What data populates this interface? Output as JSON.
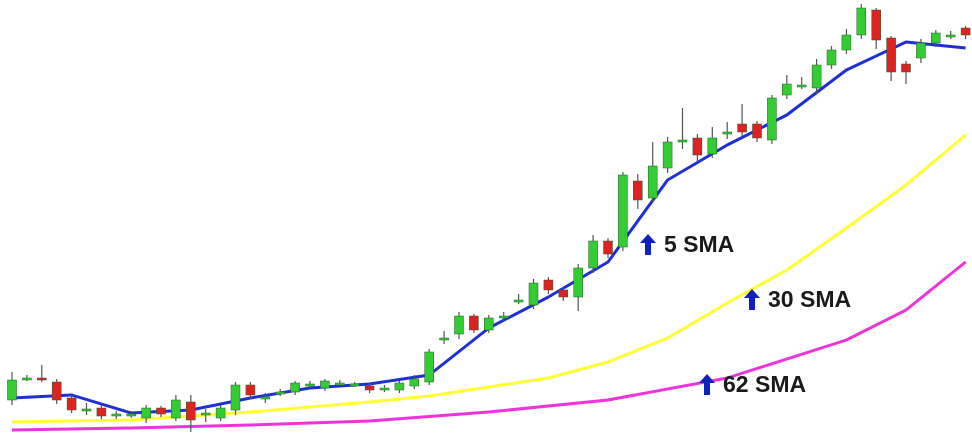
{
  "chart_data": {
    "type": "candlestick",
    "ylim": [
      0,
      439
    ],
    "up_color": "#33cc33",
    "down_color": "#dd2222",
    "wick_color": "#555555",
    "candles": {
      "open": [
        39,
        60,
        61,
        57,
        41,
        29,
        31,
        25,
        24,
        21,
        31,
        21,
        37,
        26,
        21,
        29,
        54,
        42,
        46,
        47,
        55,
        51,
        56,
        55,
        53,
        51,
        49,
        53,
        57,
        101,
        105,
        123,
        109,
        123,
        139,
        134,
        159,
        149,
        142,
        171,
        198,
        192,
        258,
        241,
        271,
        299,
        301,
        285,
        307,
        315,
        315,
        299,
        344,
        354,
        351,
        374,
        389,
        404,
        429,
        401,
        375,
        381,
        396,
        404,
        411
      ],
      "high": [
        67,
        64,
        74,
        60,
        44,
        36,
        34,
        28,
        28,
        34,
        33,
        44,
        44,
        30,
        34,
        57,
        57,
        46,
        50,
        58,
        58,
        60,
        59,
        57,
        55,
        54,
        58,
        64,
        90,
        108,
        127,
        125,
        124,
        127,
        145,
        160,
        162,
        152,
        175,
        204,
        201,
        267,
        265,
        297,
        302,
        331,
        305,
        312,
        317,
        335,
        318,
        344,
        364,
        362,
        380,
        393,
        410,
        435,
        431,
        403,
        378,
        400,
        409,
        408,
        413
      ],
      "low": [
        34,
        58,
        57,
        35,
        26,
        24,
        20,
        20,
        21,
        16,
        22,
        18,
        7,
        17,
        18,
        24,
        40,
        36,
        43,
        44,
        51,
        48,
        53,
        52,
        46,
        47,
        46,
        50,
        54,
        95,
        100,
        106,
        106,
        118,
        135,
        130,
        145,
        138,
        128,
        166,
        181,
        188,
        230,
        236,
        266,
        290,
        278,
        281,
        300,
        303,
        297,
        295,
        340,
        350,
        346,
        370,
        385,
        400,
        390,
        358,
        355,
        376,
        392,
        400,
        400
      ],
      "close": [
        59,
        61,
        60,
        39,
        29,
        30,
        23,
        25,
        25,
        31,
        25,
        39,
        19,
        26,
        31,
        54,
        44,
        42,
        47,
        56,
        55,
        58,
        56,
        55,
        49,
        51,
        56,
        60,
        87,
        101,
        123,
        109,
        121,
        123,
        139,
        156,
        149,
        142,
        171,
        198,
        185,
        264,
        239,
        273,
        297,
        299,
        284,
        301,
        307,
        307,
        301,
        341,
        355,
        354,
        374,
        389,
        404,
        431,
        399,
        367,
        367,
        396,
        406,
        404,
        404
      ]
    },
    "lines": [
      {
        "name": "5 SMA",
        "color": "#1f2fd6",
        "x": [
          0,
          4,
          8,
          12,
          16,
          20,
          24,
          28,
          32,
          36,
          40,
          44,
          48,
          52,
          56,
          60,
          64
        ],
        "values": [
          41,
          44,
          26,
          29,
          41,
          51,
          55,
          64,
          111,
          142,
          177,
          259,
          294,
          324,
          369,
          397,
          391
        ]
      },
      {
        "name": "30 SMA",
        "color": "#ffff33",
        "x": [
          0,
          8,
          16,
          24,
          28,
          32,
          36,
          40,
          44,
          48,
          52,
          56,
          60,
          64
        ],
        "values": [
          17,
          19,
          27,
          37,
          43,
          52,
          61,
          77,
          101,
          136,
          169,
          211,
          254,
          304
        ]
      },
      {
        "name": "62 SMA",
        "color": "#ee33dd",
        "x": [
          0,
          8,
          16,
          24,
          32,
          40,
          48,
          56,
          60,
          64
        ],
        "values": [
          9,
          11,
          14,
          18,
          27,
          39,
          61,
          99,
          129,
          177
        ]
      }
    ]
  }
}
